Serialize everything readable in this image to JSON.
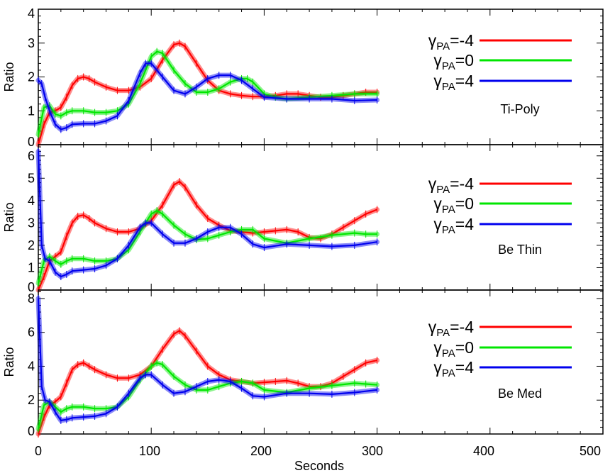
{
  "figure": {
    "xlabel": "Seconds",
    "x_ticks": [
      "0",
      "100",
      "200",
      "300",
      "400",
      "500"
    ],
    "xlim": [
      0,
      500
    ]
  },
  "chart_data": [
    {
      "type": "line",
      "title": "Ti-Poly",
      "panel_label": "Ti-Poly",
      "ylabel": "Ratio",
      "xlabel": "Seconds",
      "xlim": [
        0,
        500
      ],
      "ylim": [
        0,
        4
      ],
      "y_ticks": [
        "0",
        "1",
        "2",
        "3",
        "4"
      ],
      "legend": [
        {
          "gamma": "γ",
          "sub": "PA",
          "value": "=-4",
          "color": "#ff0000"
        },
        {
          "gamma": "γ",
          "sub": "PA",
          "value": "=0",
          "color": "#00e600"
        },
        {
          "gamma": "γ",
          "sub": "PA",
          "value": "=4",
          "color": "#0000ee"
        }
      ],
      "series": [
        {
          "name": "γPA=-4",
          "color": "#ff0000",
          "x": [
            0,
            5,
            10,
            15,
            20,
            25,
            30,
            35,
            40,
            45,
            50,
            60,
            70,
            80,
            90,
            100,
            110,
            120,
            125,
            130,
            140,
            150,
            160,
            170,
            180,
            190,
            200,
            210,
            220,
            230,
            240,
            250,
            260,
            270,
            280,
            290,
            300
          ],
          "y": [
            0.0,
            0.6,
            0.95,
            1.0,
            1.1,
            1.4,
            1.75,
            1.95,
            2.0,
            1.95,
            1.85,
            1.7,
            1.6,
            1.6,
            1.7,
            1.95,
            2.5,
            2.95,
            3.0,
            2.9,
            2.4,
            1.9,
            1.6,
            1.5,
            1.45,
            1.42,
            1.42,
            1.45,
            1.5,
            1.5,
            1.45,
            1.4,
            1.4,
            1.45,
            1.5,
            1.55,
            1.55
          ]
        },
        {
          "name": "γPA=0",
          "color": "#00e600",
          "x": [
            0,
            5,
            10,
            15,
            20,
            25,
            30,
            40,
            50,
            60,
            70,
            80,
            90,
            100,
            105,
            110,
            120,
            130,
            140,
            150,
            160,
            170,
            180,
            185,
            190,
            200,
            210,
            220,
            240,
            260,
            280,
            300
          ],
          "y": [
            0.3,
            1.1,
            1.15,
            0.9,
            0.85,
            0.95,
            1.0,
            1.0,
            0.95,
            0.95,
            1.0,
            1.2,
            1.8,
            2.6,
            2.75,
            2.7,
            2.2,
            1.8,
            1.55,
            1.55,
            1.65,
            1.85,
            1.95,
            1.95,
            1.85,
            1.5,
            1.4,
            1.35,
            1.4,
            1.45,
            1.5,
            1.5
          ]
        },
        {
          "name": "γPA=4",
          "color": "#0000ee",
          "x": [
            0,
            3,
            6,
            10,
            15,
            20,
            25,
            30,
            40,
            50,
            60,
            70,
            80,
            90,
            95,
            100,
            110,
            120,
            130,
            140,
            150,
            160,
            170,
            180,
            190,
            200,
            220,
            240,
            260,
            280,
            300
          ],
          "y": [
            1.9,
            1.8,
            1.4,
            1.0,
            0.6,
            0.45,
            0.5,
            0.6,
            0.62,
            0.62,
            0.7,
            0.85,
            1.3,
            2.1,
            2.4,
            2.4,
            2.0,
            1.6,
            1.5,
            1.7,
            1.95,
            2.05,
            2.05,
            1.9,
            1.65,
            1.4,
            1.35,
            1.35,
            1.35,
            1.3,
            1.32
          ]
        }
      ]
    },
    {
      "type": "line",
      "title": "Be Thin",
      "panel_label": "Be Thin",
      "ylabel": "Ratio",
      "xlabel": "Seconds",
      "xlim": [
        0,
        500
      ],
      "ylim": [
        0,
        6.5
      ],
      "y_ticks": [
        "0",
        "1",
        "2",
        "3",
        "4",
        "5",
        "6"
      ],
      "legend": [
        {
          "gamma": "γ",
          "sub": "PA",
          "value": "=-4",
          "color": "#ff0000"
        },
        {
          "gamma": "γ",
          "sub": "PA",
          "value": "=0",
          "color": "#00e600"
        },
        {
          "gamma": "γ",
          "sub": "PA",
          "value": "=4",
          "color": "#0000ee"
        }
      ],
      "series": [
        {
          "name": "γPA=-4",
          "color": "#ff0000",
          "x": [
            0,
            5,
            10,
            15,
            20,
            25,
            30,
            35,
            40,
            45,
            50,
            60,
            70,
            80,
            90,
            100,
            110,
            120,
            125,
            130,
            140,
            150,
            160,
            170,
            180,
            190,
            200,
            210,
            220,
            230,
            240,
            250,
            260,
            270,
            280,
            290,
            300
          ],
          "y": [
            0.0,
            0.6,
            1.3,
            1.5,
            1.7,
            2.4,
            3.0,
            3.3,
            3.35,
            3.2,
            3.0,
            2.75,
            2.6,
            2.6,
            2.75,
            3.1,
            3.8,
            4.7,
            4.85,
            4.6,
            3.8,
            3.2,
            2.9,
            2.65,
            2.6,
            2.55,
            2.6,
            2.65,
            2.7,
            2.6,
            2.35,
            2.3,
            2.5,
            2.8,
            3.1,
            3.4,
            3.6
          ]
        },
        {
          "name": "γPA=0",
          "color": "#00e600",
          "x": [
            0,
            5,
            10,
            15,
            20,
            25,
            30,
            40,
            50,
            60,
            70,
            80,
            90,
            100,
            105,
            110,
            120,
            130,
            140,
            150,
            160,
            170,
            180,
            190,
            200,
            220,
            240,
            260,
            280,
            290,
            300
          ],
          "y": [
            0.3,
            1.3,
            1.5,
            1.3,
            1.15,
            1.3,
            1.4,
            1.4,
            1.3,
            1.3,
            1.4,
            1.8,
            2.6,
            3.4,
            3.55,
            3.4,
            2.9,
            2.5,
            2.25,
            2.3,
            2.45,
            2.6,
            2.7,
            2.7,
            2.3,
            2.1,
            2.3,
            2.45,
            2.55,
            2.5,
            2.5
          ]
        },
        {
          "name": "γPA=4",
          "color": "#0000ee",
          "x": [
            0,
            3,
            6,
            10,
            15,
            20,
            25,
            30,
            40,
            50,
            60,
            70,
            80,
            90,
            95,
            100,
            110,
            120,
            130,
            140,
            150,
            160,
            170,
            180,
            190,
            200,
            220,
            240,
            260,
            280,
            300
          ],
          "y": [
            6.2,
            2.0,
            1.4,
            1.3,
            0.8,
            0.6,
            0.7,
            0.85,
            0.9,
            0.95,
            1.1,
            1.4,
            2.0,
            2.8,
            3.0,
            3.0,
            2.5,
            2.1,
            2.1,
            2.3,
            2.6,
            2.8,
            2.8,
            2.5,
            2.05,
            1.9,
            2.05,
            2.0,
            1.95,
            2.0,
            2.15
          ]
        }
      ]
    },
    {
      "type": "line",
      "title": "Be Med",
      "panel_label": "Be Med",
      "ylabel": "Ratio",
      "xlabel": "Seconds",
      "xlim": [
        0,
        500
      ],
      "ylim": [
        0,
        8.5
      ],
      "y_ticks": [
        "0",
        "2",
        "4",
        "6",
        "8"
      ],
      "legend": [
        {
          "gamma": "γ",
          "sub": "PA",
          "value": "=-4",
          "color": "#ff0000"
        },
        {
          "gamma": "γ",
          "sub": "PA",
          "value": "=0",
          "color": "#00e600"
        },
        {
          "gamma": "γ",
          "sub": "PA",
          "value": "=4",
          "color": "#0000ee"
        }
      ],
      "series": [
        {
          "name": "γPA=-4",
          "color": "#ff0000",
          "x": [
            0,
            5,
            10,
            15,
            20,
            25,
            30,
            35,
            40,
            45,
            50,
            60,
            70,
            80,
            90,
            100,
            110,
            120,
            125,
            130,
            140,
            150,
            160,
            170,
            180,
            190,
            200,
            210,
            220,
            230,
            240,
            250,
            260,
            270,
            280,
            290,
            300
          ],
          "y": [
            0.0,
            1.0,
            1.7,
            1.9,
            2.2,
            3.0,
            3.8,
            4.1,
            4.2,
            4.0,
            3.8,
            3.5,
            3.3,
            3.3,
            3.5,
            4.0,
            5.0,
            5.9,
            6.1,
            5.8,
            4.9,
            4.0,
            3.5,
            3.2,
            3.1,
            3.0,
            3.05,
            3.1,
            3.15,
            3.0,
            2.8,
            2.8,
            3.0,
            3.4,
            3.8,
            4.2,
            4.35
          ]
        },
        {
          "name": "γPA=0",
          "color": "#00e600",
          "x": [
            0,
            5,
            10,
            15,
            20,
            25,
            30,
            40,
            50,
            60,
            70,
            80,
            90,
            100,
            105,
            110,
            120,
            130,
            140,
            150,
            160,
            170,
            180,
            190,
            200,
            220,
            240,
            260,
            280,
            290,
            300
          ],
          "y": [
            0.3,
            1.7,
            1.9,
            1.6,
            1.3,
            1.5,
            1.6,
            1.6,
            1.5,
            1.5,
            1.6,
            2.2,
            3.2,
            4.0,
            4.2,
            4.1,
            3.4,
            2.9,
            2.6,
            2.6,
            2.8,
            3.0,
            3.1,
            3.0,
            2.6,
            2.45,
            2.7,
            2.85,
            3.0,
            2.95,
            2.9
          ]
        },
        {
          "name": "γPA=4",
          "color": "#0000ee",
          "x": [
            0,
            3,
            6,
            10,
            15,
            20,
            25,
            30,
            40,
            50,
            60,
            70,
            80,
            90,
            95,
            100,
            110,
            120,
            130,
            140,
            150,
            160,
            170,
            180,
            190,
            200,
            220,
            240,
            260,
            280,
            300
          ],
          "y": [
            8.0,
            2.8,
            2.0,
            1.9,
            1.3,
            0.8,
            0.85,
            0.95,
            1.0,
            1.05,
            1.2,
            1.6,
            2.4,
            3.3,
            3.5,
            3.5,
            2.9,
            2.4,
            2.5,
            2.8,
            3.1,
            3.2,
            3.1,
            2.7,
            2.25,
            2.2,
            2.4,
            2.4,
            2.35,
            2.45,
            2.6
          ]
        }
      ]
    }
  ]
}
